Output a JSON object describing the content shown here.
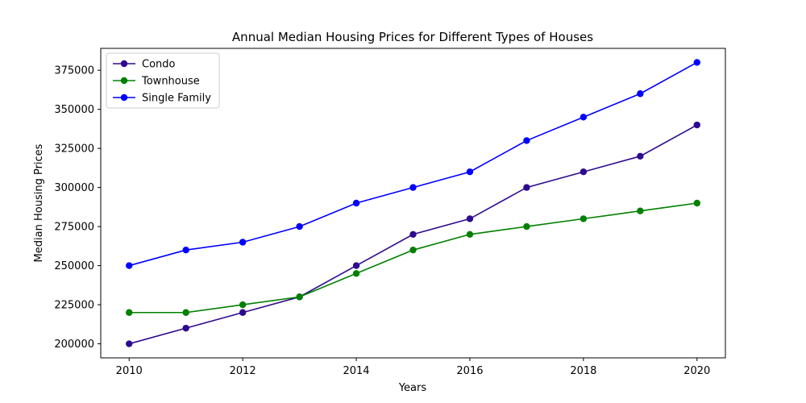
{
  "chart_data": {
    "type": "line",
    "title": "Annual Median Housing Prices for Different Types of Houses",
    "xlabel": "Years",
    "ylabel": "Median Housing Prices",
    "x": [
      2010,
      2011,
      2012,
      2013,
      2014,
      2015,
      2016,
      2017,
      2018,
      2019,
      2020
    ],
    "xlim": [
      2009.5,
      2020.5
    ],
    "ylim": [
      191000,
      389000
    ],
    "xticks": [
      2010,
      2012,
      2014,
      2016,
      2018,
      2020
    ],
    "yticks": [
      200000,
      225000,
      250000,
      275000,
      300000,
      325000,
      350000,
      375000
    ],
    "grid": false,
    "legend_position": "top-left",
    "series": [
      {
        "name": "Condo",
        "color": "#2e0a8f",
        "values": [
          200000,
          210000,
          220000,
          230000,
          250000,
          270000,
          280000,
          300000,
          310000,
          320000,
          340000
        ]
      },
      {
        "name": "Townhouse",
        "color": "#008000",
        "values": [
          220000,
          220000,
          225000,
          230000,
          245000,
          260000,
          270000,
          275000,
          280000,
          285000,
          290000
        ]
      },
      {
        "name": "Single Family",
        "color": "#0000ff",
        "values": [
          250000,
          260000,
          265000,
          275000,
          290000,
          300000,
          310000,
          330000,
          345000,
          360000,
          380000
        ]
      }
    ]
  }
}
